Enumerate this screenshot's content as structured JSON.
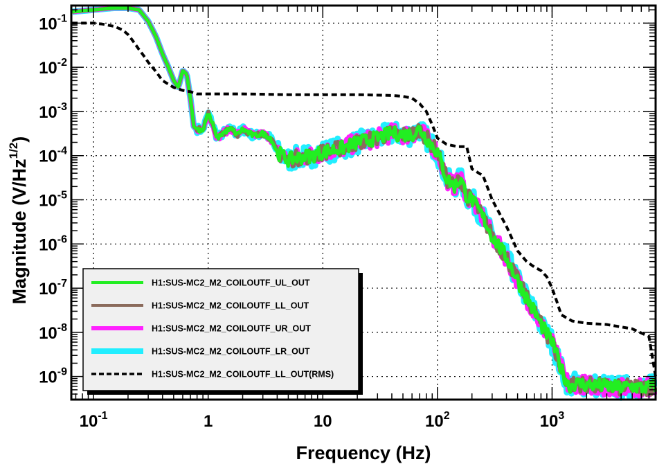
{
  "chart_data": {
    "type": "line",
    "title": "",
    "xlabel": "Frequency (Hz)",
    "ylabel": "Magnitude (V/Hz",
    "ylabel_sup": "1/2",
    "ylabel_close": ")",
    "xscale": "log",
    "yscale": "log",
    "xlim": [
      0.064,
      8000
    ],
    "ylim": [
      3e-10,
      0.25
    ],
    "grid": true,
    "legend_position": "bottom-left",
    "x_ticks": [
      {
        "value": 0.1,
        "base": "10",
        "exp": "-1"
      },
      {
        "value": 1,
        "base": "1",
        "exp": ""
      },
      {
        "value": 10,
        "base": "10",
        "exp": ""
      },
      {
        "value": 100,
        "base": "10",
        "exp": "2"
      },
      {
        "value": 1000,
        "base": "10",
        "exp": "3"
      }
    ],
    "y_ticks": [
      {
        "value": 0.1,
        "base": "10",
        "exp": "-1"
      },
      {
        "value": 0.01,
        "base": "10",
        "exp": "-2"
      },
      {
        "value": 0.001,
        "base": "10",
        "exp": "-3"
      },
      {
        "value": 0.0001,
        "base": "10",
        "exp": "-4"
      },
      {
        "value": 1e-05,
        "base": "10",
        "exp": "-5"
      },
      {
        "value": 1e-06,
        "base": "10",
        "exp": "-6"
      },
      {
        "value": 1e-07,
        "base": "10",
        "exp": "-7"
      },
      {
        "value": 1e-08,
        "base": "10",
        "exp": "-8"
      },
      {
        "value": 1e-09,
        "base": "10",
        "exp": "-9"
      }
    ],
    "series": [
      {
        "name": "H1:SUS-MC2_M2_COILOUTF_UL_OUT",
        "color": "#22ee22",
        "style": "solid",
        "x": [
          0.065,
          0.1,
          0.15,
          0.2,
          0.25,
          0.3,
          0.35,
          0.4,
          0.45,
          0.5,
          0.55,
          0.6,
          0.65,
          0.7,
          0.75,
          0.8,
          0.9,
          1.0,
          1.1,
          1.2,
          1.4,
          1.6,
          1.8,
          2.0,
          2.5,
          3.0,
          3.5,
          4.0,
          5.0,
          6.0,
          8.0,
          10,
          15,
          20,
          30,
          40,
          50,
          60,
          70,
          80,
          100,
          120,
          140,
          160,
          180,
          200,
          250,
          300,
          400,
          500,
          600,
          700,
          800,
          1000,
          1200,
          1400,
          1600,
          2000,
          3000,
          4000,
          5000,
          6000,
          8000
        ],
        "y": [
          0.18,
          0.2,
          0.22,
          0.22,
          0.2,
          0.11,
          0.05,
          0.02,
          0.01,
          0.005,
          0.0035,
          0.0085,
          0.007,
          0.002,
          0.00045,
          0.0004,
          0.00038,
          0.0009,
          0.0005,
          0.00025,
          0.00035,
          0.0004,
          0.0003,
          0.0004,
          0.00028,
          0.00032,
          0.00025,
          0.00012,
          8e-05,
          9e-05,
          0.0001,
          0.00012,
          0.00015,
          0.0002,
          0.00025,
          0.00032,
          0.0003,
          0.0003,
          0.0004,
          0.00025,
          0.00012,
          3e-05,
          2e-05,
          3e-05,
          1.2e-05,
          1e-05,
          4e-06,
          1.5e-06,
          5e-07,
          1.5e-07,
          6e-08,
          3e-08,
          1.5e-08,
          6e-09,
          1.5e-09,
          6e-10,
          7e-10,
          6.5e-10,
          6e-10,
          5.5e-10,
          6e-10,
          5.5e-10,
          6e-10
        ]
      },
      {
        "name": "H1:SUS-MC2_M2_COILOUTF_LL_OUT",
        "color": "#8b6b5c",
        "style": "solid"
      },
      {
        "name": "H1:SUS-MC2_M2_COILOUTF_UR_OUT",
        "color": "#ff22ff",
        "style": "solid"
      },
      {
        "name": "H1:SUS-MC2_M2_COILOUTF_LR_OUT",
        "color": "#22eeff",
        "style": "solid"
      },
      {
        "name": "H1:SUS-MC2_M2_COILOUTF_LL_OUT(RMS)",
        "color": "#000000",
        "style": "dashed",
        "x": [
          0.065,
          0.1,
          0.12,
          0.15,
          0.18,
          0.2,
          0.22,
          0.25,
          0.28,
          0.3,
          0.35,
          0.4,
          0.5,
          0.6,
          0.7,
          0.8,
          1.0,
          2.0,
          5.0,
          10,
          20,
          40,
          50,
          60,
          70,
          80,
          90,
          100,
          120,
          150,
          180,
          200,
          250,
          300,
          400,
          500,
          600,
          700,
          800,
          900,
          1000,
          1100,
          1200,
          1500,
          2000,
          3000,
          5000,
          7000,
          8000
        ],
        "y": [
          0.1,
          0.1,
          0.095,
          0.085,
          0.07,
          0.055,
          0.04,
          0.025,
          0.017,
          0.013,
          0.008,
          0.005,
          0.0035,
          0.003,
          0.0028,
          0.0025,
          0.0025,
          0.0025,
          0.0024,
          0.0024,
          0.0024,
          0.0023,
          0.0022,
          0.002,
          0.0015,
          0.001,
          0.0005,
          0.00025,
          0.00018,
          0.00016,
          0.00016,
          5e-05,
          3.5e-05,
          1e-05,
          2.5e-06,
          7e-07,
          4e-07,
          3e-07,
          2.5e-07,
          1.8e-07,
          1e-07,
          5e-08,
          2.5e-08,
          1.8e-08,
          1.6e-08,
          1.5e-08,
          1.2e-08,
          8e-09,
          1e-09
        ]
      }
    ]
  }
}
